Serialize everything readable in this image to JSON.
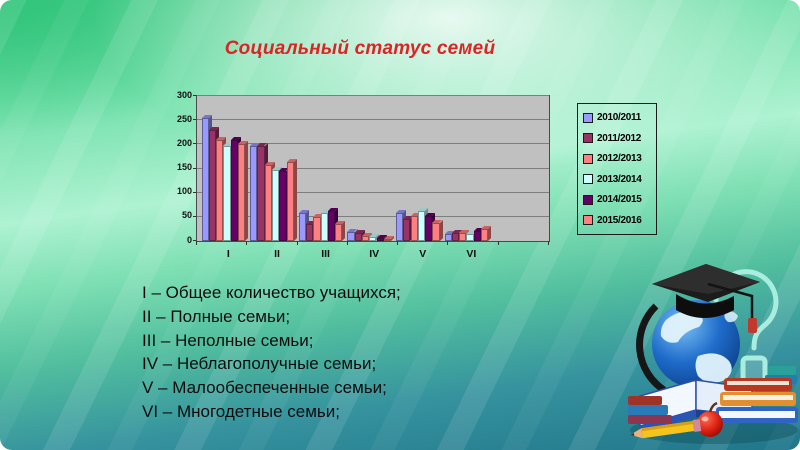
{
  "title": "Социальный статус семей",
  "colors": {
    "title_text": "#da2525",
    "body_text": "#0d0d0d",
    "plot_background": "#c0c0c0",
    "gridline": "#7e7e7e",
    "slide_top": "#43cb85",
    "slide_bottom": "#20768a"
  },
  "chart_data": {
    "type": "bar",
    "style": "3d-clustered-column",
    "title": "",
    "xlabel": "",
    "ylabel": "",
    "categories": [
      "I",
      "II",
      "III",
      "IV",
      "V",
      "VI"
    ],
    "series": [
      {
        "name": "2010/2011",
        "color": "#9999FF",
        "values": [
          255,
          197,
          57,
          18,
          58,
          15
        ]
      },
      {
        "name": "2011/2012",
        "color": "#993366",
        "values": [
          230,
          196,
          36,
          16,
          45,
          17
        ]
      },
      {
        "name": "2012/2013",
        "color": "#FF8080",
        "values": [
          210,
          157,
          50,
          11,
          51,
          17
        ]
      },
      {
        "name": "2013/2014",
        "color": "#CCFFFF",
        "values": [
          197,
          147,
          57,
          8,
          62,
          15
        ]
      },
      {
        "name": "2014/2015",
        "color": "#660066",
        "values": [
          208,
          145,
          62,
          7,
          52,
          21
        ]
      },
      {
        "name": "2015/2016",
        "color": "#FF8080",
        "values": [
          200,
          163,
          35,
          5,
          37,
          25
        ]
      }
    ],
    "ylim": [
      0,
      300
    ],
    "ytick_step": 50,
    "grid": true,
    "legend_position": "right"
  },
  "description": [
    "I – Общее количество учащихся;",
    "II – Полные семьи;",
    "III – Неполные семьи;",
    "IV – Неблагополучные семьи;",
    "V – Малообеспеченные семьи;",
    "VI – Многодетные семьи;"
  ],
  "clipart_icons": [
    "question-mark-icon",
    "graduation-cap-icon",
    "globe-icon",
    "open-book-icon",
    "books-stack-icon",
    "apple-icon",
    "pencil-icon"
  ]
}
